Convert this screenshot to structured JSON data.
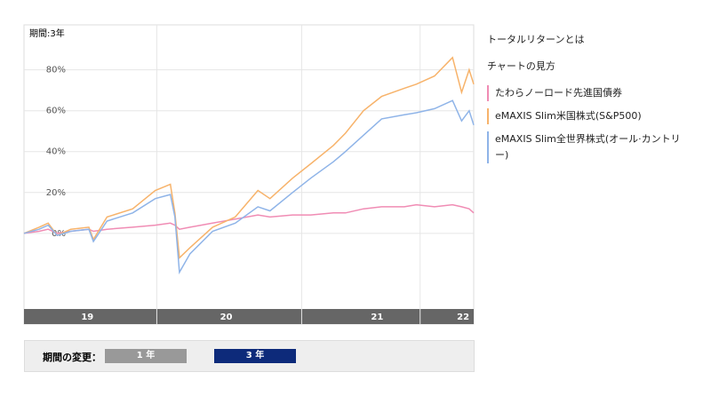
{
  "chart_data": {
    "type": "line",
    "period_label": "期間:3年",
    "x": [
      2019.16,
      2019.26,
      2019.32,
      2019.38,
      2019.47,
      2019.59,
      2019.62,
      2019.71,
      2019.88,
      2020.03,
      2020.13,
      2020.16,
      2020.19,
      2020.26,
      2020.41,
      2020.56,
      2020.71,
      2020.79,
      2020.94,
      2021.06,
      2021.21,
      2021.29,
      2021.41,
      2021.53,
      2021.68,
      2021.76,
      2021.88,
      2022.0,
      2022.06,
      2022.11,
      2022.14
    ],
    "xlim": [
      2019.16,
      2022.14
    ],
    "xticks": [
      {
        "value": 2019.58,
        "label": "19"
      },
      {
        "value": 2020.5,
        "label": "20"
      },
      {
        "value": 2021.5,
        "label": "21"
      },
      {
        "value": 2022.07,
        "label": "22"
      }
    ],
    "ylim": [
      -37,
      102
    ],
    "yticks": [
      {
        "value": 0,
        "label": "0%"
      },
      {
        "value": 20,
        "label": "20%"
      },
      {
        "value": 40,
        "label": "40%"
      },
      {
        "value": 60,
        "label": "60%"
      },
      {
        "value": 80,
        "label": "80%"
      }
    ],
    "grid": true,
    "series": [
      {
        "name": "たわらノーロード先進国債券",
        "color": "#f08cb4",
        "values": [
          0,
          1,
          2,
          0,
          1,
          2,
          1,
          2,
          3,
          4,
          5,
          4,
          2,
          3,
          5,
          7,
          9,
          8,
          9,
          9,
          10,
          10,
          12,
          13,
          13,
          14,
          13,
          14,
          13,
          12,
          10
        ]
      },
      {
        "name": "eMAXIS Slim米国株式(S&P500)",
        "color": "#f7b36b",
        "values": [
          0,
          3,
          5,
          -1,
          2,
          3,
          -3,
          8,
          12,
          21,
          24,
          10,
          -12,
          -7,
          3,
          8,
          21,
          17,
          27,
          34,
          43,
          49,
          60,
          67,
          71,
          73,
          77,
          86,
          69,
          80,
          73
        ]
      },
      {
        "name": "eMAXIS Slim全世界株式(オール·カントリー)",
        "color": "#8fb4e8",
        "values": [
          0,
          2,
          4,
          -1,
          1,
          2,
          -4,
          6,
          10,
          17,
          19,
          8,
          -19,
          -10,
          1,
          5,
          13,
          11,
          20,
          27,
          35,
          40,
          48,
          56,
          58,
          59,
          61,
          65,
          55,
          60,
          53
        ]
      }
    ]
  },
  "links": [
    "トータルリターンとは",
    "チャートの見方"
  ],
  "period_selector": {
    "label": "期間の変更：",
    "options": [
      "1 年",
      "3 年"
    ]
  }
}
